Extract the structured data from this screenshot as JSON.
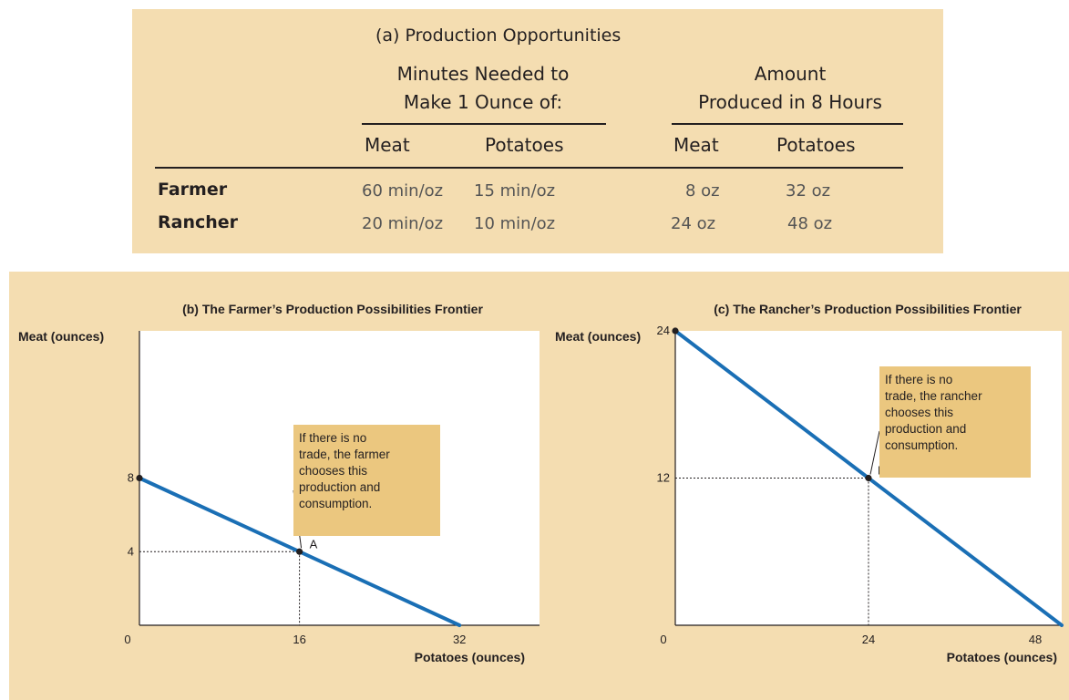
{
  "table": {
    "title": "(a) Production Opportunities",
    "group1": [
      "Minutes Needed to",
      "Make 1 Ounce of:"
    ],
    "group2": [
      "Amount",
      "Produced in 8 Hours"
    ],
    "col_headers": [
      "Meat",
      "Potatoes",
      "Meat",
      "Potatoes"
    ],
    "rows": [
      {
        "name": "Farmer",
        "cells": [
          "60 min/oz",
          "15 min/oz",
          "8 oz",
          "32 oz"
        ]
      },
      {
        "name": "Rancher",
        "cells": [
          "20 min/oz",
          "10 min/oz",
          "24 oz",
          "48 oz"
        ]
      }
    ]
  },
  "chart_data": [
    {
      "type": "line",
      "title": "(b) The Farmer’s Production Possibilities Frontier",
      "xlabel": "Potatoes (ounces)",
      "ylabel": "Meat (ounces)",
      "xlim": [
        0,
        40
      ],
      "ylim": [
        0,
        16
      ],
      "x_ticks": [
        0,
        16,
        32
      ],
      "y_ticks": [
        4,
        8
      ],
      "series": [
        {
          "x": [
            0,
            32
          ],
          "y": [
            8,
            0
          ]
        }
      ],
      "point": {
        "label": "A",
        "x": 16,
        "y": 4
      },
      "annotation": [
        "If there is no",
        "trade, the farmer",
        "chooses this",
        "production and",
        "consumption."
      ],
      "colors": {
        "frontier": "#1a6fb5",
        "callout": "#ebc77f"
      }
    },
    {
      "type": "line",
      "title": "(c) The Rancher’s Production Possibilities Frontier",
      "xlabel": "Potatoes (ounces)",
      "ylabel": "Meat (ounces)",
      "xlim": [
        0,
        48
      ],
      "ylim": [
        0,
        24
      ],
      "x_ticks": [
        0,
        24,
        48
      ],
      "y_ticks": [
        12,
        24
      ],
      "series": [
        {
          "x": [
            0,
            48
          ],
          "y": [
            24,
            0
          ]
        }
      ],
      "point": {
        "label": "B",
        "x": 24,
        "y": 12
      },
      "annotation": [
        "If there is no",
        "trade, the rancher",
        "chooses this",
        "production and",
        "consumption."
      ],
      "colors": {
        "frontier": "#1a6fb5",
        "callout": "#ebc77f"
      }
    }
  ]
}
